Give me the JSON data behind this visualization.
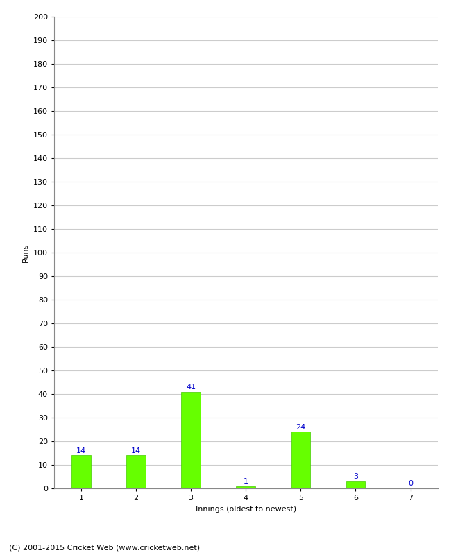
{
  "xlabel": "Innings (oldest to newest)",
  "ylabel": "Runs",
  "categories": [
    "1",
    "2",
    "3",
    "4",
    "5",
    "6",
    "7"
  ],
  "values": [
    14,
    14,
    41,
    1,
    24,
    3,
    0
  ],
  "bar_color": "#66ff00",
  "bar_edge_color": "#44cc00",
  "annotation_color": "#0000cc",
  "ylim": [
    0,
    200
  ],
  "yticks": [
    0,
    10,
    20,
    30,
    40,
    50,
    60,
    70,
    80,
    90,
    100,
    110,
    120,
    130,
    140,
    150,
    160,
    170,
    180,
    190,
    200
  ],
  "background_color": "#ffffff",
  "grid_color": "#cccccc",
  "footer_text": "(C) 2001-2015 Cricket Web (www.cricketweb.net)",
  "ylabel_fontsize": 8,
  "xlabel_fontsize": 8,
  "annotation_fontsize": 8,
  "tick_fontsize": 8,
  "footer_fontsize": 8,
  "bar_width": 0.35
}
